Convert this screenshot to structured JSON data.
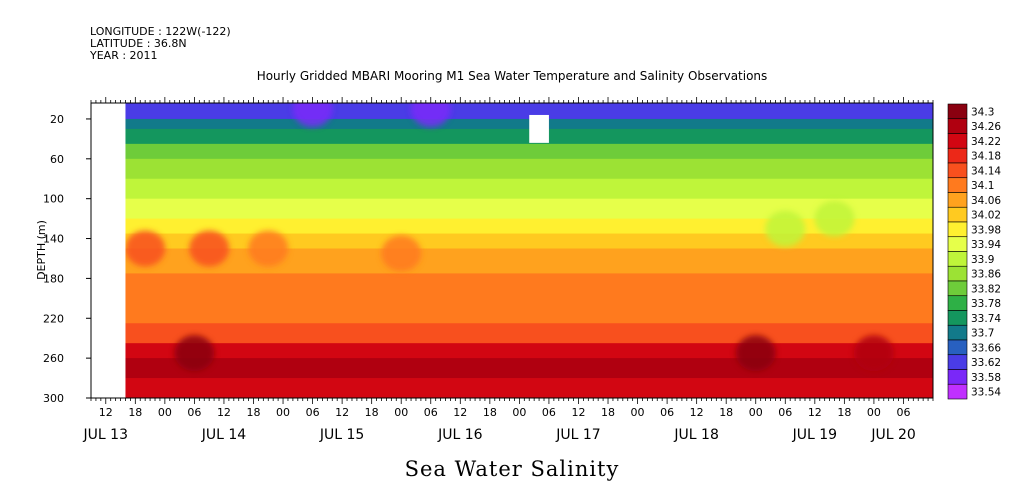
{
  "header": {
    "longitude": "LONGITUDE : 122W(-122)",
    "latitude": "LATITUDE : 36.8N",
    "year": "YEAR : 2011"
  },
  "chart_data": {
    "type": "heatmap",
    "title": "Hourly Gridded MBARI Mooring M1 Sea Water Temperature and Salinity Observations",
    "xlabel": "",
    "ylabel": "DEPTH (m)",
    "footer_title": "Sea Water Salinity",
    "x_axis": {
      "unit": "hours",
      "start_hour": 9,
      "end_hour": 180,
      "hour_ticks": [
        {
          "h": 12,
          "label": "12"
        },
        {
          "h": 18,
          "label": "18"
        },
        {
          "h": 24,
          "label": "00"
        },
        {
          "h": 30,
          "label": "06"
        },
        {
          "h": 36,
          "label": "12"
        },
        {
          "h": 42,
          "label": "18"
        },
        {
          "h": 48,
          "label": "00"
        },
        {
          "h": 54,
          "label": "06"
        },
        {
          "h": 60,
          "label": "12"
        },
        {
          "h": 66,
          "label": "18"
        },
        {
          "h": 72,
          "label": "00"
        },
        {
          "h": 78,
          "label": "06"
        },
        {
          "h": 84,
          "label": "12"
        },
        {
          "h": 90,
          "label": "18"
        },
        {
          "h": 96,
          "label": "00"
        },
        {
          "h": 102,
          "label": "06"
        },
        {
          "h": 108,
          "label": "12"
        },
        {
          "h": 114,
          "label": "18"
        },
        {
          "h": 120,
          "label": "00"
        },
        {
          "h": 126,
          "label": "06"
        },
        {
          "h": 132,
          "label": "12"
        },
        {
          "h": 138,
          "label": "18"
        },
        {
          "h": 144,
          "label": "00"
        },
        {
          "h": 150,
          "label": "06"
        },
        {
          "h": 156,
          "label": "12"
        },
        {
          "h": 162,
          "label": "18"
        },
        {
          "h": 168,
          "label": "00"
        },
        {
          "h": 174,
          "label": "06"
        }
      ],
      "day_labels": [
        {
          "h": 12,
          "label": "JUL 13"
        },
        {
          "h": 36,
          "label": "JUL 14"
        },
        {
          "h": 60,
          "label": "JUL 15"
        },
        {
          "h": 84,
          "label": "JUL 16"
        },
        {
          "h": 108,
          "label": "JUL 17"
        },
        {
          "h": 132,
          "label": "JUL 18"
        },
        {
          "h": 156,
          "label": "JUL 19"
        },
        {
          "h": 172,
          "label": "JUL 20"
        }
      ]
    },
    "y_axis": {
      "min": 300,
      "max": 4,
      "ticks": [
        20,
        60,
        100,
        140,
        180,
        220,
        260,
        300
      ]
    },
    "colorbar": {
      "levels": [
        "34.3",
        "34.26",
        "34.22",
        "34.18",
        "34.14",
        "34.1",
        "34.06",
        "34.02",
        "33.98",
        "33.94",
        "33.9",
        "33.86",
        "33.82",
        "33.78",
        "33.74",
        "33.7",
        "33.66",
        "33.62",
        "33.58",
        "33.54"
      ],
      "colors": [
        "#8a0010",
        "#b00010",
        "#d20612",
        "#ec2818",
        "#f8501e",
        "#ff7a1e",
        "#ffa21e",
        "#ffca20",
        "#fff030",
        "#e6ff4a",
        "#bff53a",
        "#9ce234",
        "#6ecc3a",
        "#2eb046",
        "#14965e",
        "#127a8a",
        "#2860c0",
        "#4a3ce6",
        "#7a28f8",
        "#c030ff"
      ]
    },
    "missing_regions": [
      {
        "h0": 9,
        "h1": 16,
        "d0": 4,
        "d1": 300
      },
      {
        "h0": 98,
        "h1": 102,
        "d0": 16,
        "d1": 44
      }
    ],
    "depth_profile_zones": [
      {
        "d": 4,
        "value": 33.6
      },
      {
        "d": 20,
        "value": 33.68
      },
      {
        "d": 30,
        "value": 33.76
      },
      {
        "d": 45,
        "value": 33.82
      },
      {
        "d": 60,
        "value": 33.86
      },
      {
        "d": 80,
        "value": 33.9
      },
      {
        "d": 100,
        "value": 33.94
      },
      {
        "d": 120,
        "value": 33.98
      },
      {
        "d": 135,
        "value": 34.04
      },
      {
        "d": 150,
        "value": 34.08
      },
      {
        "d": 175,
        "value": 34.1
      },
      {
        "d": 200,
        "value": 34.12
      },
      {
        "d": 225,
        "value": 34.16
      },
      {
        "d": 245,
        "value": 34.2
      },
      {
        "d": 260,
        "value": 34.24
      },
      {
        "d": 280,
        "value": 34.2
      },
      {
        "d": 300,
        "value": 34.14
      }
    ],
    "features": [
      {
        "h": 30,
        "d": 255,
        "value": 34.3
      },
      {
        "h": 20,
        "d": 150,
        "value": 34.14
      },
      {
        "h": 33,
        "d": 150,
        "value": 34.14
      },
      {
        "h": 45,
        "d": 150,
        "value": 34.12
      },
      {
        "h": 72,
        "d": 155,
        "value": 34.12
      },
      {
        "h": 144,
        "d": 255,
        "value": 34.28
      },
      {
        "h": 168,
        "d": 255,
        "value": 34.26
      },
      {
        "h": 150,
        "d": 130,
        "value": 33.9
      },
      {
        "h": 160,
        "d": 120,
        "value": 33.88
      },
      {
        "h": 54,
        "d": 10,
        "value": 33.56
      },
      {
        "h": 78,
        "d": 10,
        "value": 33.56
      }
    ]
  }
}
